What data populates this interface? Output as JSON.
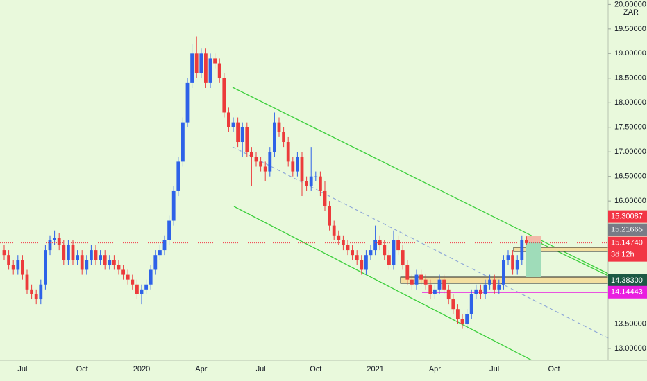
{
  "chart_data": {
    "type": "candlestick",
    "currency": "ZAR",
    "up_color": "#2e62e8",
    "down_color": "#ec3b3b",
    "categories": [
      null,
      null,
      null,
      null,
      "Jul",
      null,
      null,
      null,
      null,
      null,
      null,
      null,
      null,
      null,
      null,
      null,
      null,
      "Oct",
      null,
      null,
      null,
      null,
      null,
      null,
      null,
      null,
      null,
      null,
      null,
      null,
      "2020",
      null,
      null,
      null,
      null,
      null,
      null,
      null,
      null,
      null,
      null,
      null,
      null,
      "Apr",
      null,
      null,
      null,
      null,
      null,
      null,
      null,
      null,
      null,
      null,
      null,
      null,
      "Jul",
      null,
      null,
      null,
      null,
      null,
      null,
      null,
      null,
      null,
      null,
      null,
      "Oct",
      null,
      null,
      null,
      null,
      null,
      null,
      null,
      null,
      null,
      null,
      null,
      null,
      "2021",
      null,
      null,
      null,
      null,
      null,
      null,
      null,
      null,
      null,
      null,
      null,
      null,
      "Apr",
      null,
      null,
      null,
      null,
      null,
      null,
      null,
      null,
      null,
      null,
      null,
      null,
      "Jul",
      null,
      null,
      null,
      null,
      null,
      null,
      null,
      null,
      null,
      null,
      null,
      null,
      "Oct"
    ],
    "open": [
      15.0,
      14.9,
      14.7,
      14.6,
      14.8,
      14.5,
      14.2,
      14.1,
      14.0,
      14.3,
      15.0,
      15.2,
      15.25,
      15.1,
      14.8,
      15.1,
      14.8,
      14.9,
      14.6,
      14.8,
      15.0,
      14.8,
      14.9,
      14.7,
      14.8,
      14.7,
      14.6,
      14.5,
      14.4,
      14.3,
      14.1,
      14.2,
      14.3,
      14.6,
      14.9,
      15.0,
      15.2,
      15.6,
      16.2,
      16.8,
      17.6,
      18.4,
      19.0,
      18.6,
      19.0,
      18.4,
      18.9,
      18.8,
      18.5,
      17.8,
      17.5,
      17.6,
      17.2,
      17.5,
      17.0,
      16.9,
      16.8,
      16.7,
      16.6,
      17.0,
      17.6,
      17.4,
      17.2,
      16.8,
      16.6,
      16.9,
      16.4,
      16.3,
      16.5,
      16.5,
      16.2,
      15.9,
      15.5,
      15.3,
      15.2,
      15.1,
      15.0,
      14.9,
      14.8,
      14.6,
      14.9,
      15.0,
      15.2,
      15.1,
      14.9,
      14.7,
      15.2,
      15.0,
      14.7,
      14.4,
      14.3,
      14.5,
      14.4,
      14.3,
      14.1,
      14.2,
      14.4,
      14.2,
      14.0,
      13.8,
      13.6,
      13.5,
      13.7,
      14.1,
      14.2,
      14.1,
      14.3,
      14.4,
      14.2,
      14.3,
      14.8,
      14.9,
      14.6,
      14.8,
      15.2,
      null,
      null,
      null,
      null,
      null,
      null
    ],
    "high": [
      15.1,
      15.0,
      14.8,
      14.9,
      14.9,
      14.6,
      14.3,
      14.2,
      14.4,
      15.1,
      15.3,
      15.4,
      15.35,
      15.2,
      15.2,
      15.2,
      15.0,
      15.0,
      14.9,
      15.1,
      15.1,
      15.0,
      15.0,
      14.9,
      14.9,
      14.8,
      14.7,
      14.6,
      14.5,
      14.4,
      14.3,
      14.4,
      14.7,
      15.0,
      15.1,
      15.3,
      15.7,
      16.3,
      16.9,
      17.7,
      18.5,
      19.2,
      19.35,
      19.1,
      19.1,
      19.0,
      19.0,
      18.9,
      18.6,
      17.9,
      17.7,
      17.7,
      17.6,
      17.6,
      17.1,
      17.0,
      16.9,
      16.8,
      17.1,
      17.8,
      17.7,
      17.5,
      17.3,
      16.9,
      17.0,
      17.0,
      16.5,
      17.1,
      16.6,
      16.6,
      16.4,
      16.0,
      15.6,
      15.4,
      15.3,
      15.2,
      15.1,
      15.0,
      14.9,
      15.0,
      15.1,
      15.5,
      15.3,
      15.2,
      15.0,
      15.4,
      15.3,
      15.1,
      14.8,
      14.5,
      14.6,
      14.6,
      14.5,
      14.4,
      14.3,
      14.5,
      14.5,
      14.3,
      14.1,
      13.9,
      13.7,
      13.8,
      14.2,
      14.3,
      14.3,
      14.4,
      14.5,
      14.5,
      14.4,
      14.9,
      15.0,
      15.0,
      14.9,
      15.3,
      15.28,
      null,
      null,
      null,
      null,
      null,
      null
    ],
    "low": [
      14.8,
      14.6,
      14.5,
      14.5,
      14.4,
      14.1,
      14.0,
      13.9,
      13.9,
      14.2,
      14.9,
      15.1,
      15.0,
      14.7,
      14.7,
      14.7,
      14.7,
      14.5,
      14.5,
      14.7,
      14.7,
      14.7,
      14.6,
      14.6,
      14.6,
      14.5,
      14.4,
      14.3,
      14.2,
      14.0,
      13.9,
      14.1,
      14.2,
      14.5,
      14.8,
      14.9,
      15.1,
      15.5,
      16.1,
      16.7,
      17.5,
      18.3,
      18.5,
      18.5,
      18.3,
      18.3,
      18.7,
      18.4,
      17.7,
      17.4,
      17.4,
      17.1,
      16.9,
      16.9,
      16.3,
      16.7,
      16.6,
      16.4,
      16.5,
      16.9,
      17.3,
      17.1,
      16.7,
      16.5,
      16.5,
      16.1,
      16.2,
      16.2,
      16.4,
      16.1,
      15.8,
      15.4,
      15.2,
      15.1,
      15.0,
      14.9,
      14.8,
      14.7,
      14.5,
      14.5,
      14.8,
      14.9,
      15.0,
      14.8,
      14.6,
      14.6,
      14.9,
      14.6,
      14.3,
      14.2,
      14.2,
      14.3,
      14.2,
      14.0,
      14.0,
      14.1,
      14.1,
      13.9,
      13.7,
      13.5,
      13.4,
      13.4,
      13.6,
      14.0,
      14.0,
      14.0,
      14.2,
      14.1,
      14.1,
      14.2,
      14.7,
      14.5,
      14.5,
      14.7,
      15.1,
      null,
      null,
      null,
      null,
      null,
      null
    ],
    "close": [
      14.9,
      14.7,
      14.6,
      14.8,
      14.5,
      14.2,
      14.1,
      14.0,
      14.3,
      15.0,
      15.2,
      15.25,
      15.1,
      14.8,
      15.1,
      14.8,
      14.9,
      14.6,
      14.8,
      15.0,
      14.8,
      14.9,
      14.7,
      14.8,
      14.7,
      14.6,
      14.5,
      14.4,
      14.3,
      14.1,
      14.2,
      14.3,
      14.6,
      14.9,
      15.0,
      15.2,
      15.6,
      16.2,
      16.8,
      17.6,
      18.4,
      19.0,
      18.6,
      19.0,
      18.4,
      18.9,
      18.8,
      18.5,
      17.8,
      17.5,
      17.6,
      17.2,
      17.5,
      17.0,
      16.9,
      16.8,
      16.7,
      16.6,
      17.0,
      17.6,
      17.4,
      17.2,
      16.8,
      16.6,
      16.9,
      16.4,
      16.3,
      16.5,
      16.5,
      16.2,
      15.9,
      15.5,
      15.3,
      15.2,
      15.1,
      15.0,
      14.9,
      14.8,
      14.6,
      14.9,
      15.0,
      15.2,
      15.1,
      14.9,
      14.7,
      15.2,
      15.0,
      14.7,
      14.4,
      14.3,
      14.5,
      14.4,
      14.3,
      14.1,
      14.2,
      14.4,
      14.2,
      14.0,
      13.8,
      13.6,
      13.5,
      13.7,
      14.1,
      14.2,
      14.1,
      14.3,
      14.4,
      14.2,
      14.3,
      14.8,
      14.9,
      14.6,
      14.8,
      15.2,
      15.1474,
      null,
      null,
      null,
      null,
      null,
      null
    ],
    "ylim": [
      12.76,
      20.09
    ],
    "yticks": [
      {
        "value": 13.0,
        "label": "13.00000"
      },
      {
        "value": 13.5,
        "label": "13.50000"
      },
      {
        "value": 16.0,
        "label": "16.00000"
      },
      {
        "value": 16.5,
        "label": "16.50000"
      },
      {
        "value": 17.0,
        "label": "17.00000"
      },
      {
        "value": 17.5,
        "label": "17.50000"
      },
      {
        "value": 18.0,
        "label": "18.00000"
      },
      {
        "value": 18.5,
        "label": "18.50000"
      },
      {
        "value": 19.0,
        "label": "19.00000"
      },
      {
        "value": 19.5,
        "label": "19.50000"
      },
      {
        "value": 20.0,
        "label": "20.00000"
      }
    ],
    "grid": false,
    "price_labels": [
      {
        "value": 15.30087,
        "label": "15.30087",
        "color": "#f23645"
      },
      {
        "value": 15.21665,
        "label": "15.21665",
        "color": "#787b86"
      },
      {
        "value": 15.1474,
        "label": "15.14740",
        "color": "#f23645",
        "countdown": "3d 12h"
      },
      {
        "value": 14.383,
        "label": "14.38300",
        "color": "#1c5a44"
      },
      {
        "value": 14.14443,
        "label": "14.14443",
        "color": "#e91ee0"
      }
    ]
  }
}
